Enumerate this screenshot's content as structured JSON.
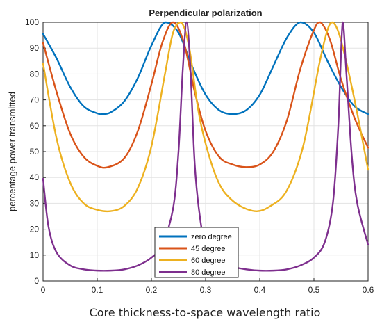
{
  "chart_data": {
    "type": "line",
    "title": "Perpendicular polarization",
    "xlabel": "Core thickness-to-space wavelength ratio",
    "ylabel": "percentage power transmitted",
    "xlim": [
      0,
      0.6
    ],
    "ylim": [
      0,
      100
    ],
    "xticks": [
      0,
      0.1,
      0.2,
      0.3,
      0.4,
      0.5,
      0.6
    ],
    "xtick_labels": [
      "0",
      "0.1",
      "0.2",
      "0.3",
      "0.4",
      "0.5",
      "0.6"
    ],
    "yticks": [
      0,
      10,
      20,
      30,
      40,
      50,
      60,
      70,
      80,
      90,
      100
    ],
    "ytick_labels": [
      "0",
      "10",
      "20",
      "30",
      "40",
      "50",
      "60",
      "70",
      "80",
      "90",
      "100"
    ],
    "grid": true,
    "legend_position": "bottom-center",
    "series": [
      {
        "name": "zero degree",
        "color": "#0072BD",
        "x": [
          0,
          0.025,
          0.05,
          0.075,
          0.1,
          0.11,
          0.125,
          0.15,
          0.175,
          0.2,
          0.225,
          0.25,
          0.275,
          0.3,
          0.325,
          0.35,
          0.375,
          0.4,
          0.425,
          0.45,
          0.475,
          0.5,
          0.525,
          0.55,
          0.575,
          0.6
        ],
        "y": [
          95.5,
          86,
          75,
          67.5,
          64.8,
          64.5,
          65.2,
          69.5,
          78.5,
          91,
          100,
          96,
          83,
          72,
          66,
          64.5,
          66,
          72,
          83,
          94,
          100,
          96,
          85,
          75,
          67.5,
          64.5
        ]
      },
      {
        "name": "45 degree",
        "color": "#D95319",
        "x": [
          0,
          0.025,
          0.05,
          0.075,
          0.1,
          0.12,
          0.15,
          0.175,
          0.2,
          0.22,
          0.24,
          0.26,
          0.28,
          0.3,
          0.325,
          0.35,
          0.375,
          0.4,
          0.425,
          0.45,
          0.475,
          0.5,
          0.512,
          0.53,
          0.55,
          0.575,
          0.6
        ],
        "y": [
          92,
          73,
          57,
          48,
          44.5,
          44,
          47.5,
          58,
          76,
          92,
          100,
          92,
          73,
          58,
          48,
          45,
          44,
          45,
          50,
          62,
          82,
          97,
          100,
          93,
          78,
          63,
          51.5
        ]
      },
      {
        "name": "60 degree",
        "color": "#EDB120",
        "x": [
          0,
          0.025,
          0.05,
          0.075,
          0.1,
          0.125,
          0.15,
          0.175,
          0.2,
          0.225,
          0.24,
          0.255,
          0.27,
          0.29,
          0.32,
          0.35,
          0.39,
          0.42,
          0.45,
          0.48,
          0.51,
          0.525,
          0.535,
          0.55,
          0.575,
          0.6
        ],
        "y": [
          84,
          55,
          38,
          30,
          27.5,
          27,
          29,
          36,
          52,
          80,
          96,
          100,
          90,
          62,
          40,
          31,
          27,
          29,
          35,
          52,
          84,
          97,
          100,
          93,
          70,
          43
        ]
      },
      {
        "name": "80 degree",
        "color": "#7E2F8E",
        "x": [
          0,
          0.01,
          0.025,
          0.05,
          0.075,
          0.1,
          0.125,
          0.15,
          0.175,
          0.2,
          0.22,
          0.24,
          0.25,
          0.258,
          0.265,
          0.272,
          0.28,
          0.29,
          0.3,
          0.325,
          0.35,
          0.375,
          0.4,
          0.425,
          0.45,
          0.475,
          0.5,
          0.52,
          0.535,
          0.545,
          0.553,
          0.56,
          0.57,
          0.58,
          0.6
        ],
        "y": [
          39.5,
          21,
          11,
          6,
          4.5,
          4,
          4,
          4.5,
          6,
          9,
          14,
          28,
          50,
          82,
          100,
          82,
          45,
          24,
          15,
          8,
          5.5,
          4.5,
          4,
          4,
          4.5,
          6,
          9,
          15,
          30,
          60,
          100,
          80,
          48,
          30,
          14
        ]
      }
    ]
  }
}
